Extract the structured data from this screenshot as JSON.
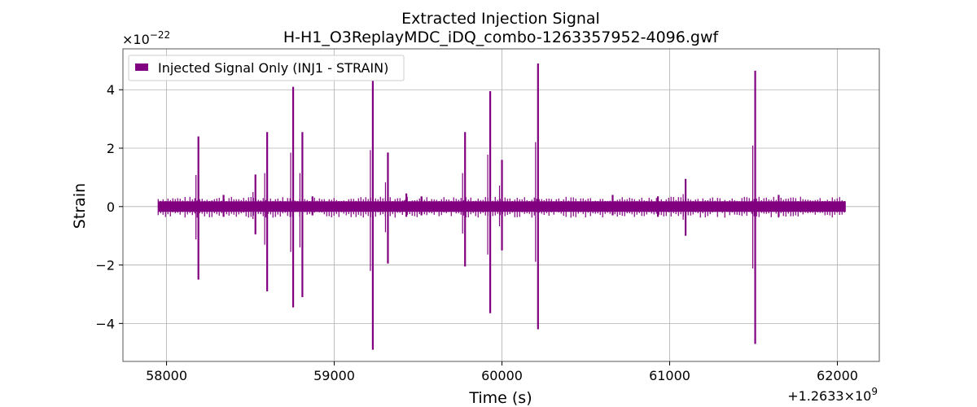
{
  "chart_data": {
    "type": "line",
    "title": "Extracted Injection Signal",
    "subtitle": "H-H1_O3ReplayMDC_iDQ_combo-1263357952-4096.gwf",
    "xlabel": "Time (s)",
    "ylabel": "Strain",
    "x_offset_label": "+1.2633×10",
    "x_offset_exp": "9",
    "y_scale_label": "×10",
    "y_scale_exp": "−22",
    "xlim": [
      57740,
      62250
    ],
    "ylim": [
      -5.3,
      5.4
    ],
    "x_ticks": [
      58000,
      59000,
      60000,
      61000,
      62000
    ],
    "x_tick_labels": [
      "58000",
      "59000",
      "60000",
      "61000",
      "62000"
    ],
    "y_ticks": [
      -4,
      -2,
      0,
      2,
      4
    ],
    "y_tick_labels": [
      "−4",
      "−2",
      "0",
      "2",
      "4"
    ],
    "grid": true,
    "legend_position": "top-left",
    "series": [
      {
        "name": "Injected Signal Only (INJ1 - STRAIN)",
        "color": "#800080",
        "x_range": [
          57950,
          62050
        ],
        "baseline_band": [
          -0.18,
          0.18
        ],
        "spikes": [
          {
            "x": 58190,
            "max": 2.4,
            "min": -2.5
          },
          {
            "x": 58530,
            "max": 1.1,
            "min": -0.95
          },
          {
            "x": 58600,
            "max": 2.55,
            "min": -2.9
          },
          {
            "x": 58755,
            "max": 4.1,
            "min": -3.45
          },
          {
            "x": 58810,
            "max": 2.55,
            "min": -3.1
          },
          {
            "x": 59230,
            "max": 4.3,
            "min": -4.9
          },
          {
            "x": 59320,
            "max": 1.85,
            "min": -1.95
          },
          {
            "x": 59780,
            "max": 2.55,
            "min": -2.05
          },
          {
            "x": 59930,
            "max": 3.95,
            "min": -3.65
          },
          {
            "x": 60000,
            "max": 1.6,
            "min": -1.5
          },
          {
            "x": 60215,
            "max": 4.9,
            "min": -4.2
          },
          {
            "x": 61095,
            "max": 0.95,
            "min": -1.0
          },
          {
            "x": 61510,
            "max": 4.65,
            "min": -4.7
          },
          {
            "x": 58340,
            "max": 0.4,
            "min": -0.35
          },
          {
            "x": 58870,
            "max": 0.35,
            "min": -0.3
          },
          {
            "x": 59430,
            "max": 0.45,
            "min": -0.35
          },
          {
            "x": 59520,
            "max": 0.35,
            "min": -0.3
          },
          {
            "x": 60660,
            "max": 0.4,
            "min": -0.3
          },
          {
            "x": 60930,
            "max": 0.35,
            "min": -0.35
          },
          {
            "x": 61650,
            "max": 0.4,
            "min": -0.35
          }
        ]
      }
    ]
  }
}
